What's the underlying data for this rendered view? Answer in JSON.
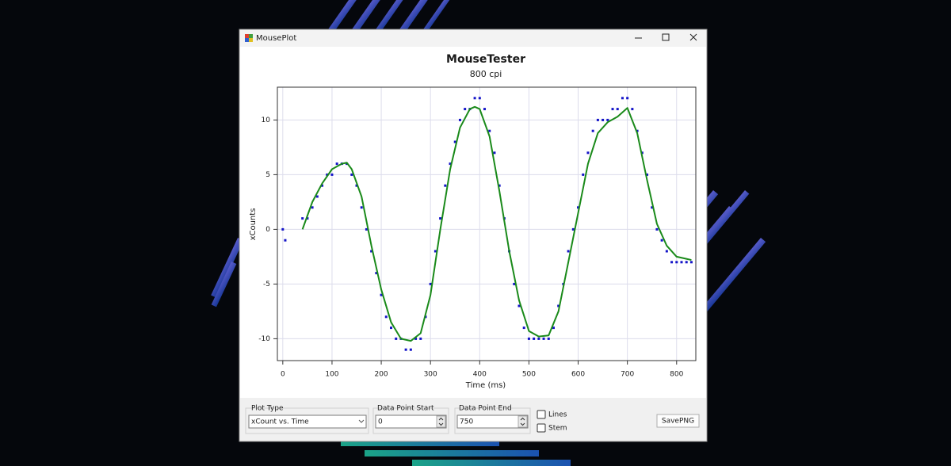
{
  "window": {
    "title": "MousePlot"
  },
  "chart_data": {
    "type": "scatter",
    "title": "MouseTester",
    "subtitle": "800 cpi",
    "x_label": "Time (ms)",
    "y_label": "xCounts",
    "xlim": [
      -11,
      839
    ],
    "ylim": [
      -12,
      13
    ],
    "xticks": [
      0,
      100,
      200,
      300,
      400,
      500,
      600,
      700,
      800
    ],
    "yticks": [
      -10,
      -5,
      0,
      5,
      10
    ],
    "grid": true,
    "series": [
      {
        "mode": "markers",
        "color": "#1414c8",
        "x": [
          0,
          5,
          40,
          50,
          60,
          70,
          80,
          90,
          100,
          110,
          120,
          130,
          140,
          150,
          160,
          170,
          180,
          190,
          200,
          210,
          220,
          230,
          240,
          250,
          260,
          270,
          280,
          290,
          300,
          310,
          320,
          330,
          340,
          350,
          360,
          370,
          380,
          390,
          400,
          410,
          420,
          430,
          440,
          450,
          460,
          470,
          480,
          490,
          500,
          510,
          520,
          530,
          540,
          550,
          560,
          570,
          580,
          590,
          600,
          610,
          620,
          630,
          640,
          650,
          660,
          670,
          680,
          690,
          700,
          710,
          720,
          730,
          740,
          750,
          760,
          770,
          780,
          790,
          800,
          810,
          820,
          830
        ],
        "values": [
          0,
          -1,
          1,
          1,
          2,
          3,
          4,
          5,
          5,
          6,
          6,
          6,
          5,
          4,
          2,
          0,
          -2,
          -4,
          -6,
          -8,
          -9,
          -10,
          -10,
          -11,
          -11,
          -10,
          -10,
          -8,
          -5,
          -2,
          1,
          4,
          6,
          8,
          10,
          11,
          11,
          12,
          12,
          11,
          9,
          7,
          4,
          1,
          -2,
          -5,
          -7,
          -9,
          -10,
          -10,
          -10,
          -10,
          -10,
          -9,
          -7,
          -5,
          -2,
          0,
          2,
          5,
          7,
          9,
          10,
          10,
          10,
          11,
          11,
          12,
          12,
          11,
          9,
          7,
          5,
          2,
          0,
          -1,
          -2,
          -3,
          -3,
          -3,
          -3,
          -3
        ]
      },
      {
        "mode": "line",
        "color": "#1a8a1a",
        "x": [
          40,
          60,
          80,
          100,
          120,
          130,
          140,
          160,
          180,
          200,
          220,
          240,
          260,
          280,
          300,
          320,
          340,
          360,
          380,
          390,
          400,
          420,
          440,
          460,
          480,
          500,
          520,
          540,
          560,
          580,
          600,
          620,
          640,
          660,
          680,
          700,
          720,
          740,
          760,
          780,
          800,
          820,
          830
        ],
        "values": [
          0,
          2.5,
          4.2,
          5.5,
          6,
          6.1,
          5.5,
          3,
          -1.5,
          -5.5,
          -8.5,
          -10,
          -10.2,
          -9.5,
          -6,
          0,
          5.5,
          9.3,
          11,
          11.2,
          11,
          8.5,
          3.5,
          -2,
          -6.5,
          -9.3,
          -9.8,
          -9.7,
          -7.5,
          -3,
          1.5,
          6,
          8.8,
          9.8,
          10.3,
          11.1,
          8.8,
          4.5,
          0.5,
          -1.5,
          -2.5,
          -2.7,
          -2.8
        ]
      }
    ]
  },
  "controls": {
    "plot_type": {
      "label": "Plot Type",
      "value": "xCount vs. Time"
    },
    "start": {
      "label": "Data Point Start",
      "value": 0
    },
    "end": {
      "label": "Data Point End",
      "value": 750
    },
    "lines": {
      "label": "Lines",
      "checked": false
    },
    "stem": {
      "label": "Stem",
      "checked": false
    },
    "save": {
      "label": "SavePNG"
    }
  }
}
